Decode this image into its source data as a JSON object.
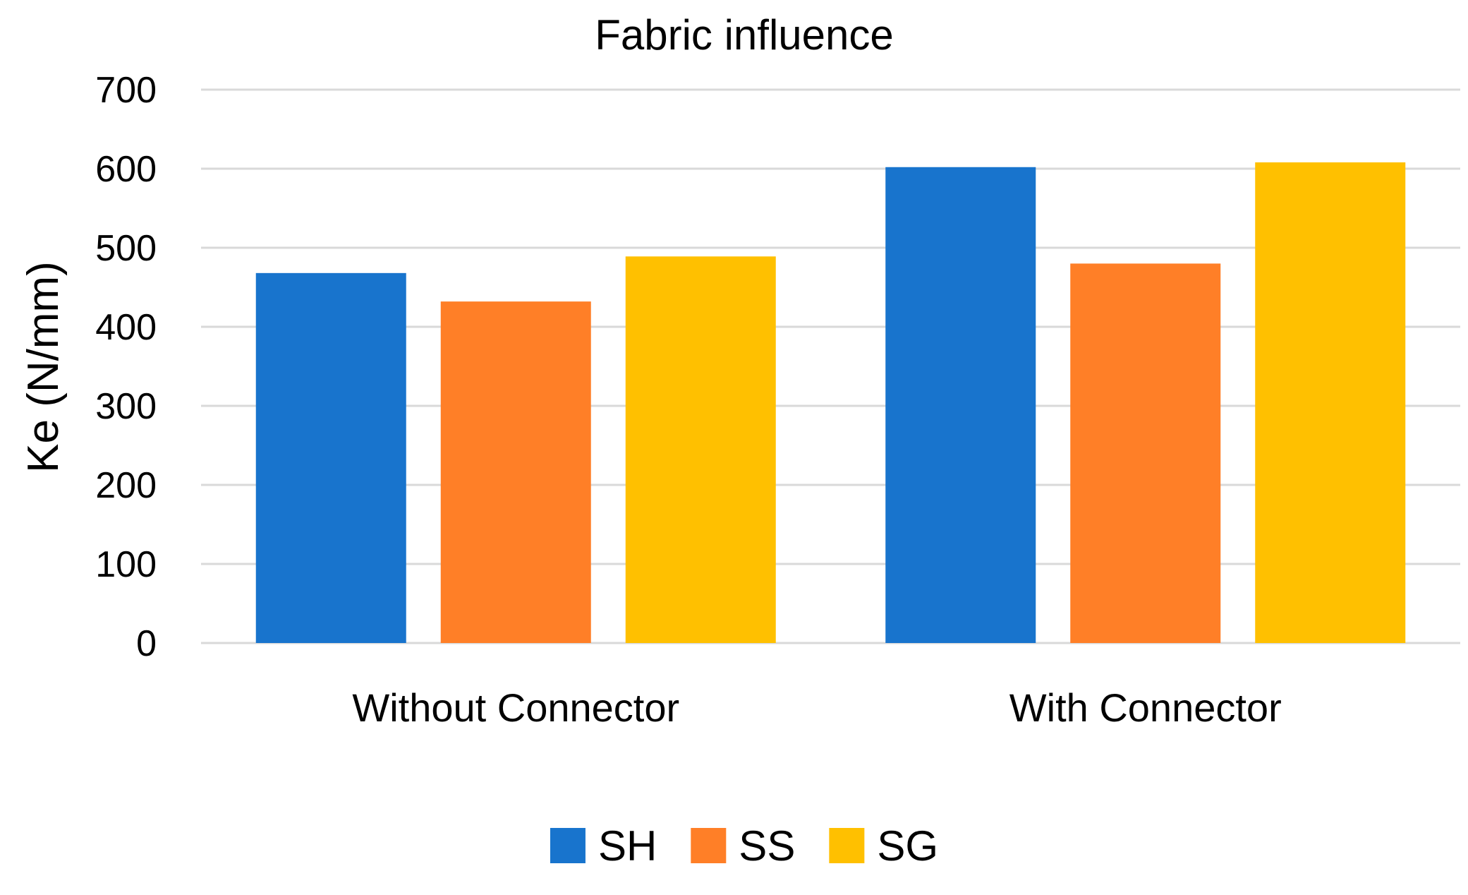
{
  "chart_data": {
    "type": "bar",
    "title": "Fabric influence",
    "xlabel": "",
    "ylabel": "Ke (N/mm)",
    "ylim": [
      0,
      700
    ],
    "yticks": [
      0,
      100,
      200,
      300,
      400,
      500,
      600,
      700
    ],
    "grid": true,
    "legend_position": "bottom",
    "categories": [
      "Without Connector",
      "With Connector"
    ],
    "series": [
      {
        "name": "SH",
        "color": "#1874cd",
        "values": [
          468,
          602
        ]
      },
      {
        "name": "SS",
        "color": "#ff7f27",
        "values": [
          432,
          480
        ]
      },
      {
        "name": "SG",
        "color": "#ffc000",
        "values": [
          489,
          608
        ]
      }
    ]
  }
}
